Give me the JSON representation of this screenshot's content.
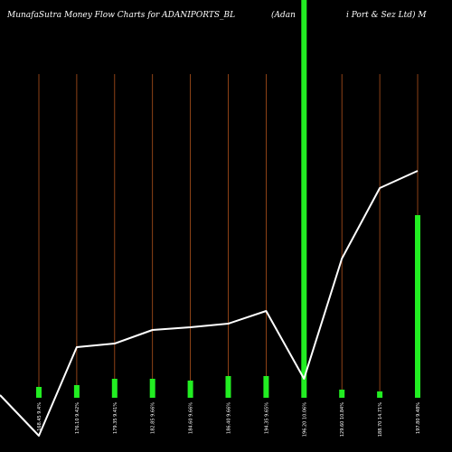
{
  "title_left": "MunafaSutra  Money Flow  Charts for ADANIPORTS_BL",
  "title_mid": "(Adan",
  "title_right": "i  Port & Sez Ltd) M",
  "colors": {
    "background": "#000000",
    "bar": "#22ee22",
    "line": "#ffffff",
    "gridline": "#b0521c"
  },
  "chart_data": {
    "type": "bar",
    "categories": [
      "168.45 9.4%",
      "176.10 9.42%",
      "179.35 9.41%",
      "182.85 9.66%",
      "184.60 9.66%",
      "186.40 9.66%",
      "194.35 9.65%",
      "196.20 10.06%",
      "129.60 10.84%",
      "188.70 14.71%",
      "197.80 9.48%"
    ],
    "bar_values": [
      12,
      14,
      21,
      21,
      19,
      24,
      24,
      500,
      9,
      7,
      202
    ],
    "line_values": [
      0,
      0,
      56,
      60,
      75,
      78,
      82,
      96,
      21,
      154,
      232,
      251
    ],
    "line_x": [
      -1,
      0,
      1,
      2,
      3,
      4,
      5,
      6,
      7,
      8,
      9,
      10
    ],
    "bar_ylim": [
      0,
      440
    ],
    "line_ylim": [
      0,
      440
    ],
    "grid": true
  }
}
